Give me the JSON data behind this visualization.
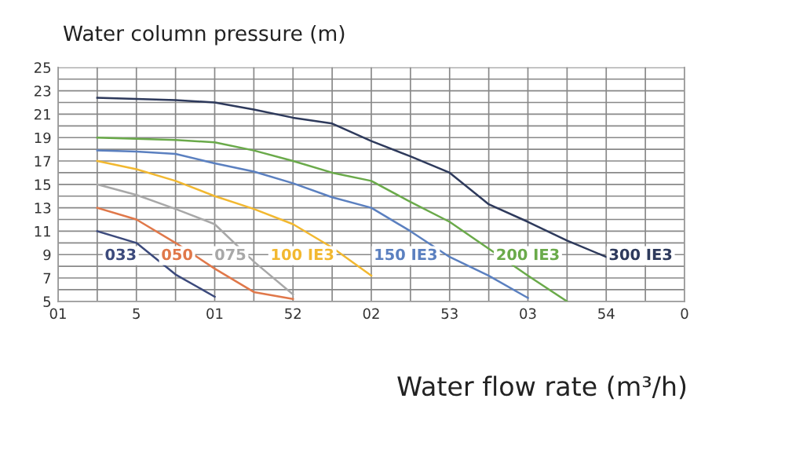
{
  "chart_data": {
    "type": "line",
    "xlabel": "Water flow rate (m³/h)",
    "ylabel": "Water column pressure (m)",
    "categories": [
      "01",
      null,
      "5",
      null,
      "01",
      null,
      "52",
      null,
      "02",
      null,
      "53",
      null,
      "03",
      null,
      "54",
      null,
      "0"
    ],
    "ylim": [
      5,
      25
    ],
    "yticks": [
      5,
      {
        "value": 6,
        "label": null
      },
      7,
      {
        "value": 8,
        "label": null
      },
      9,
      {
        "value": 10,
        "label": null
      },
      11,
      {
        "value": 12,
        "label": null
      },
      13,
      {
        "value": 14,
        "label": null
      },
      15,
      {
        "value": 16,
        "label": null
      },
      17,
      {
        "value": 18,
        "label": null
      },
      19,
      {
        "value": 20,
        "label": null
      },
      21,
      {
        "value": 22,
        "label": null
      },
      23,
      {
        "value": 24,
        "label": null
      },
      25
    ],
    "grid": true,
    "marker": "none",
    "line_style": "solid",
    "series": [
      {
        "name": "033",
        "color": "#3c4a7c",
        "values": [
          null,
          11.0,
          10.0,
          7.3,
          5.4,
          null,
          null,
          null,
          null,
          null,
          null,
          null,
          null,
          null,
          null,
          null,
          null
        ]
      },
      {
        "name": "050",
        "color": "#e0784a",
        "values": [
          null,
          13.0,
          12.0,
          10.0,
          7.8,
          5.8,
          5.2,
          null,
          null,
          null,
          null,
          null,
          null,
          null,
          null,
          null,
          null
        ]
      },
      {
        "name": "075",
        "color": "#a8a8a8",
        "values": [
          null,
          15.0,
          14.1,
          12.9,
          11.6,
          8.4,
          5.6,
          null,
          null,
          null,
          null,
          null,
          null,
          null,
          null,
          null,
          null
        ]
      },
      {
        "name": "100 IE3",
        "color": "#f2b830",
        "values": [
          null,
          17.0,
          16.3,
          15.3,
          14.0,
          12.9,
          11.6,
          9.6,
          7.2,
          null,
          null,
          null,
          null,
          null,
          null,
          null,
          null
        ]
      },
      {
        "name": "150 IE3",
        "color": "#5b80c0",
        "values": [
          null,
          17.9,
          17.8,
          17.6,
          16.8,
          16.1,
          15.1,
          13.9,
          13.0,
          11.0,
          8.8,
          7.2,
          5.3,
          null,
          null,
          null,
          null
        ]
      },
      {
        "name": "200 IE3",
        "color": "#6aaa4a",
        "values": [
          null,
          19.0,
          18.9,
          18.8,
          18.6,
          17.9,
          17.0,
          16.0,
          15.3,
          13.5,
          11.8,
          9.5,
          7.2,
          5.0,
          null,
          null,
          null
        ]
      },
      {
        "name": "300 IE3",
        "color": "#2e3a5c",
        "values": [
          null,
          22.4,
          22.3,
          22.2,
          22.0,
          21.4,
          20.7,
          20.2,
          18.7,
          17.4,
          16.0,
          13.3,
          11.8,
          10.2,
          8.8,
          null,
          null
        ]
      }
    ]
  }
}
